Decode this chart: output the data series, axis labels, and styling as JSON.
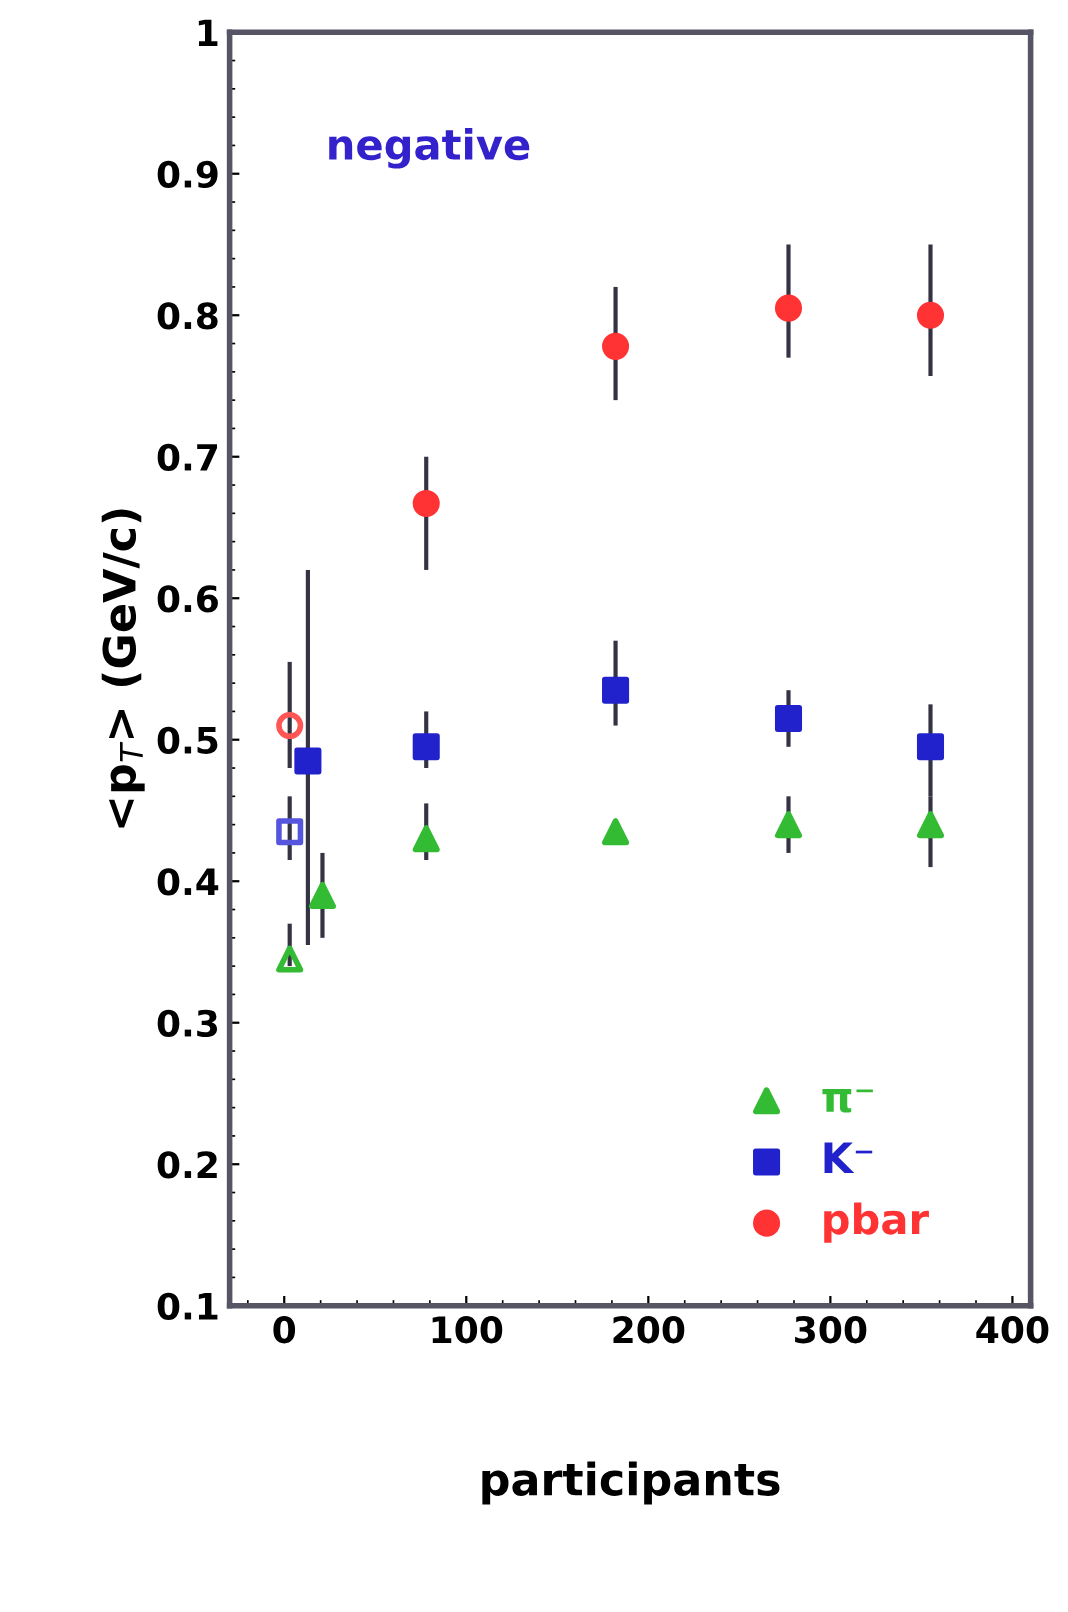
{
  "chart_data": {
    "type": "scatter",
    "xlabel": "participants",
    "ylabel": "<p$_{T}$> (GeV/c)",
    "annotations": [
      "negative"
    ],
    "xlim": [
      -30,
      410
    ],
    "xticks": [
      0,
      100,
      200,
      300,
      400
    ],
    "ylim": [
      0.1,
      1
    ],
    "yticks": [
      0.1,
      0.2,
      0.3,
      0.4,
      0.5,
      0.6,
      0.7,
      0.8,
      0.9,
      1
    ],
    "legend": "bottom right",
    "grid": false,
    "series": [
      {
        "name": "π⁻",
        "color": "#33bb33",
        "marker": "triangle",
        "x": [
          21,
          78,
          182,
          277,
          355
        ],
        "values": [
          0.39,
          0.43,
          0.435,
          0.44,
          0.44
        ],
        "errors": [
          [
            0.36,
            0.42
          ],
          [
            0.415,
            0.455
          ],
          null,
          [
            0.42,
            0.46
          ],
          [
            0.41,
            0.46
          ]
        ]
      },
      {
        "name": "K⁻",
        "color": "#2222cc",
        "marker": "square",
        "x": [
          13,
          78,
          182,
          277,
          355
        ],
        "values": [
          0.485,
          0.495,
          0.535,
          0.515,
          0.495
        ],
        "errors": [
          [
            0.355,
            0.62
          ],
          [
            0.48,
            0.52
          ],
          [
            0.51,
            0.57
          ],
          [
            0.495,
            0.535
          ],
          [
            0.46,
            0.525
          ]
        ]
      },
      {
        "name": "pbar",
        "color": "#ff3333",
        "marker": "circle",
        "x": [
          78,
          182,
          277,
          355
        ],
        "values": [
          0.667,
          0.778,
          0.805,
          0.8
        ],
        "errors": [
          [
            0.62,
            0.7
          ],
          [
            0.74,
            0.82
          ],
          [
            0.77,
            0.85
          ],
          [
            0.757,
            0.85
          ]
        ]
      },
      {
        "color": "#33bb33",
        "marker": "triangle",
        "x": [
          3
        ],
        "values": [
          0.345
        ],
        "errors": [
          [
            0.34,
            0.37
          ]
        ]
      },
      {
        "color": "#5555dd",
        "marker": "square",
        "x": [
          3
        ],
        "values": [
          0.435
        ],
        "errors": [
          [
            0.415,
            0.46
          ]
        ]
      },
      {
        "color": "#ff5555",
        "marker": "circle",
        "x": [
          3
        ],
        "values": [
          0.51
        ],
        "errors": [
          [
            0.48,
            0.555
          ]
        ]
      }
    ]
  }
}
